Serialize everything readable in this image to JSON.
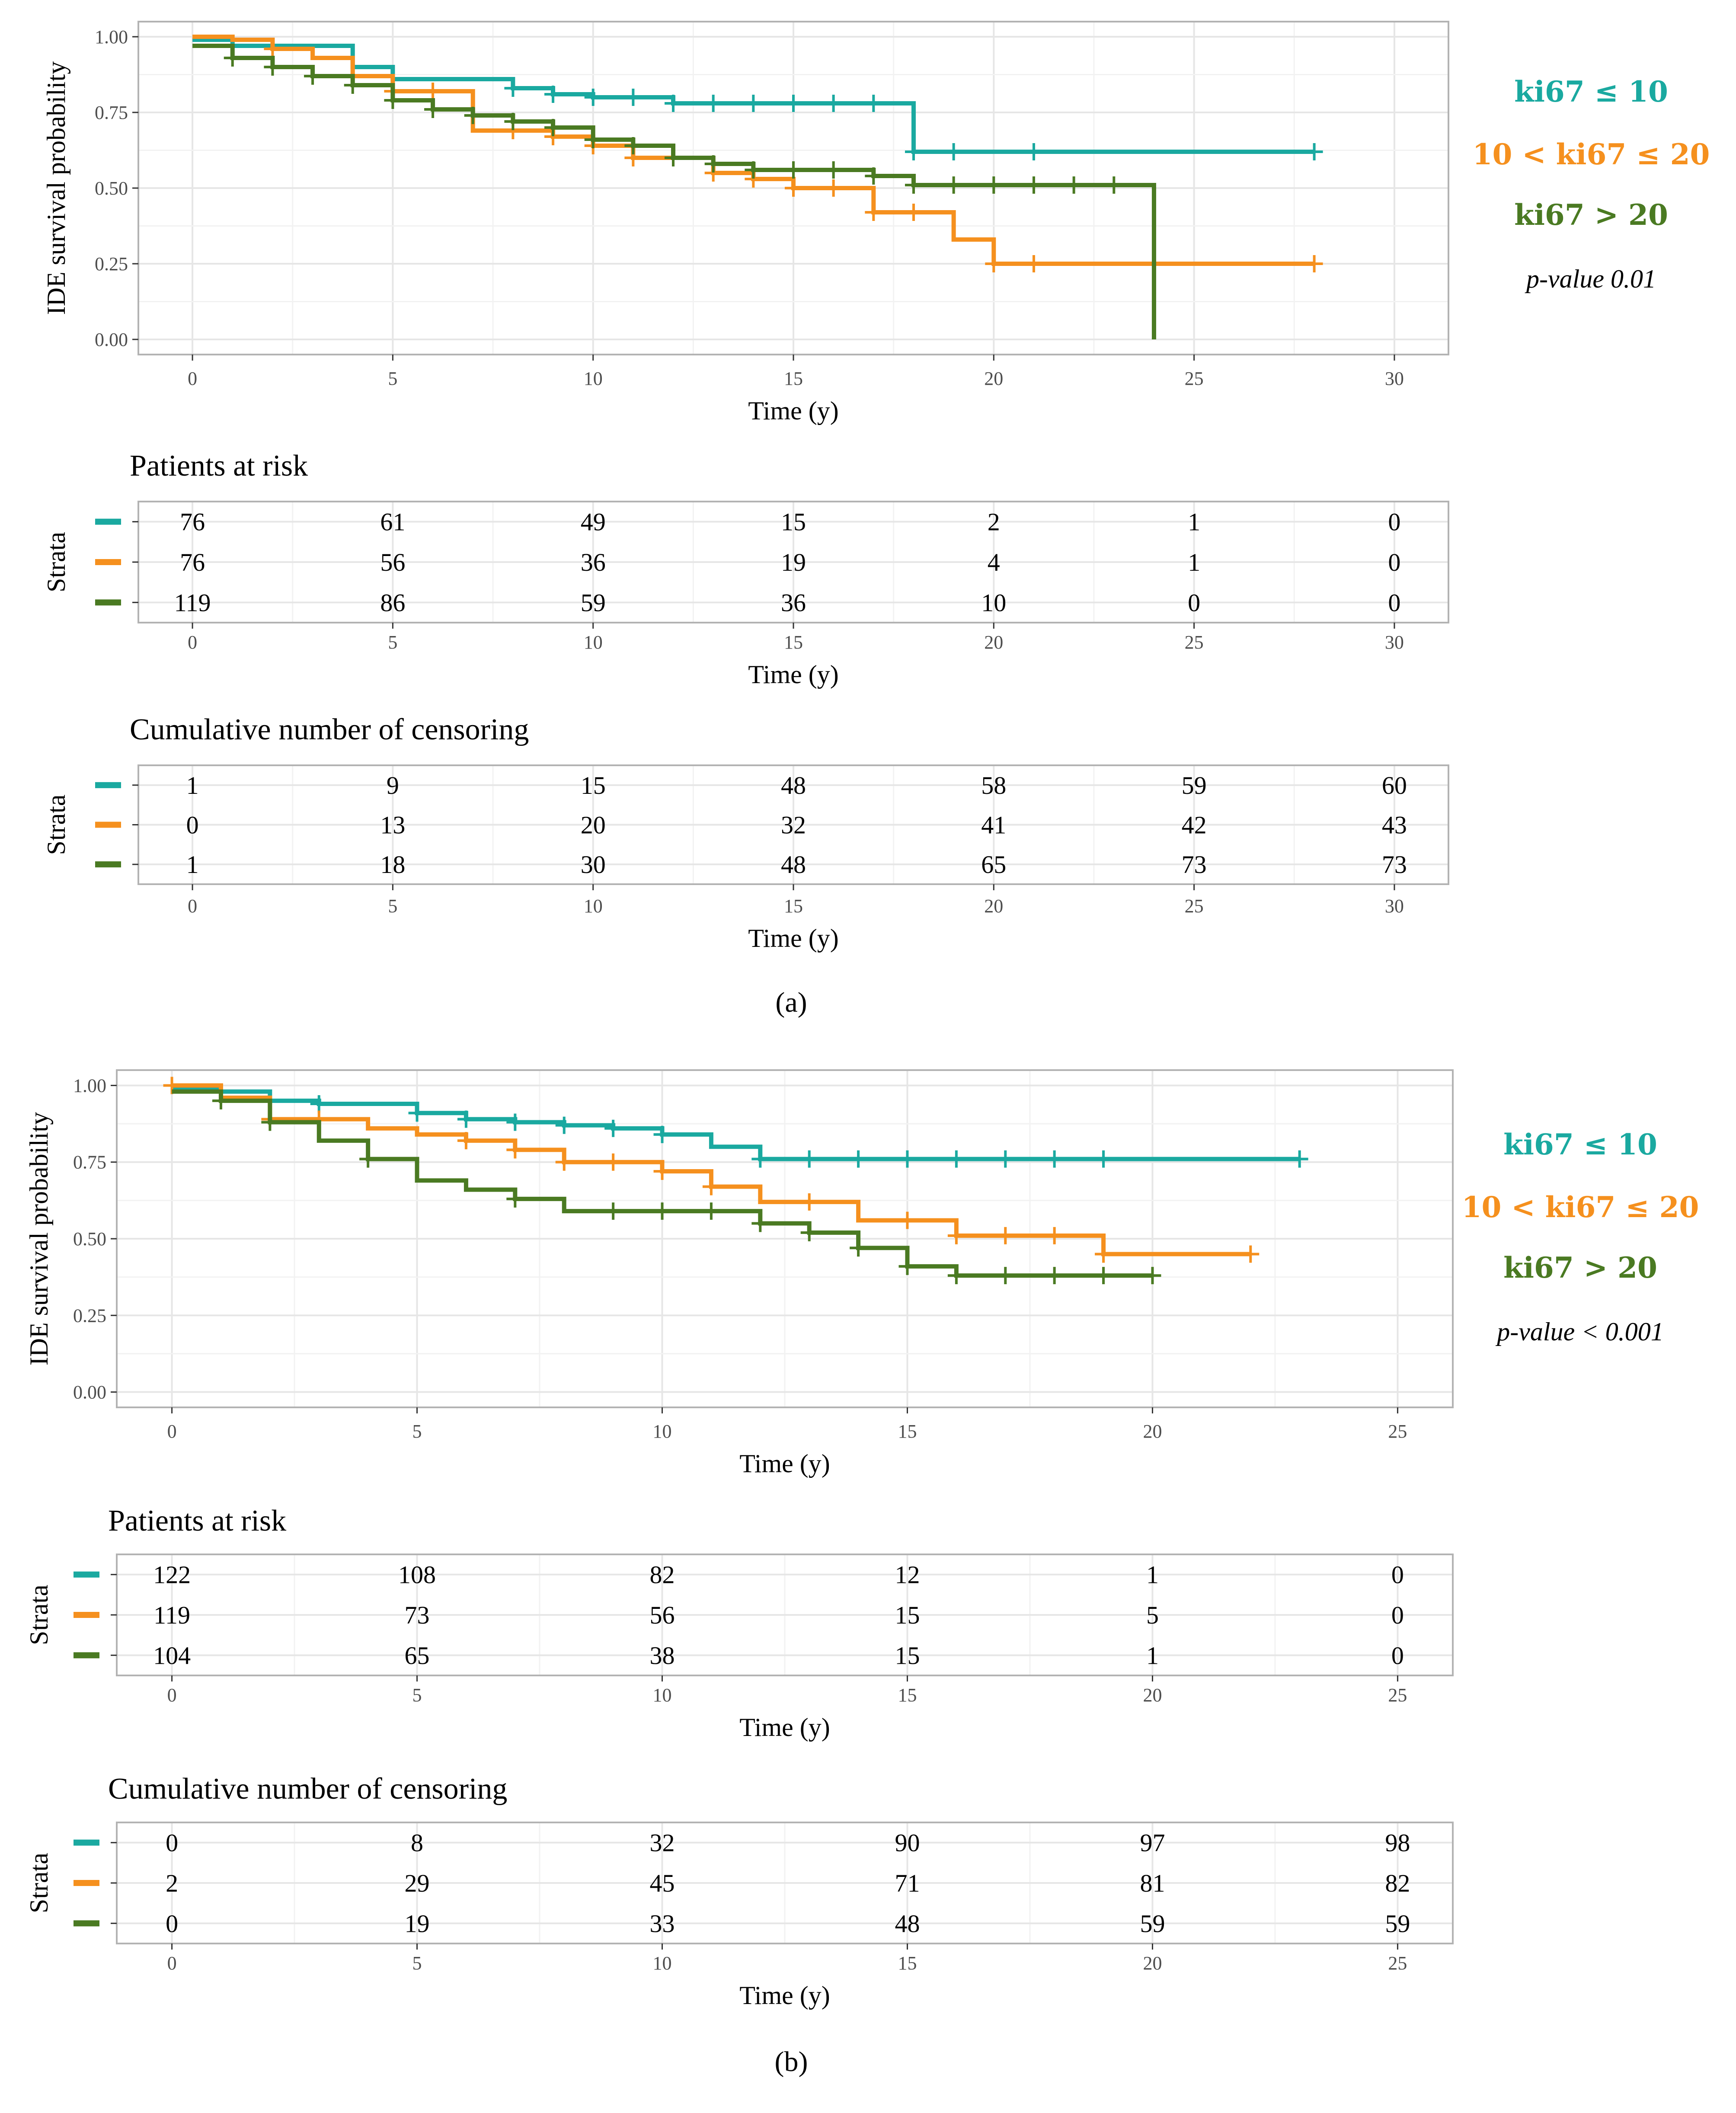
{
  "colors": {
    "teal": "#1aa9a0",
    "orange": "#f5901e",
    "green": "#4a7a22",
    "panel_border": "#b3b3b3",
    "grid_major": "#e6e6e6",
    "grid_minor": "#f2f2f2"
  },
  "chart_data": [
    {
      "type": "line",
      "subtype": "kaplan-meier step",
      "panel": "(a)",
      "caption": "(a)",
      "xlabel": "Time (y)",
      "ylabel": "IDE survival probability",
      "xlim": [
        0,
        30
      ],
      "ylim": [
        0,
        1
      ],
      "xticks": [
        "0",
        "5",
        "10",
        "15",
        "20",
        "25",
        "30"
      ],
      "yticks": [
        "0.00",
        "0.25",
        "0.50",
        "0.75",
        "1.00"
      ],
      "grid": true,
      "legend_position": "right",
      "p_value": "p-value 0.01",
      "series": [
        {
          "name": "ki67 ≤ 10",
          "color": "teal",
          "steps": [
            [
              0,
              0.99
            ],
            [
              1,
              0.97
            ],
            [
              4,
              0.9
            ],
            [
              5,
              0.86
            ],
            [
              8,
              0.83
            ],
            [
              9,
              0.81
            ],
            [
              10,
              0.8
            ],
            [
              12,
              0.78
            ],
            [
              18,
              0.62
            ],
            [
              28,
              0.62
            ]
          ],
          "censor_times": [
            8,
            9,
            10,
            11,
            12,
            13,
            14,
            15,
            16,
            17,
            18,
            19,
            21,
            28
          ]
        },
        {
          "name": "10 < ki67 ≤ 20",
          "color": "orange",
          "steps": [
            [
              0,
              1.0
            ],
            [
              1,
              0.99
            ],
            [
              2,
              0.96
            ],
            [
              3,
              0.93
            ],
            [
              4,
              0.87
            ],
            [
              5,
              0.82
            ],
            [
              7,
              0.69
            ],
            [
              9,
              0.67
            ],
            [
              10,
              0.64
            ],
            [
              11,
              0.6
            ],
            [
              13,
              0.55
            ],
            [
              14,
              0.53
            ],
            [
              15,
              0.5
            ],
            [
              17,
              0.42
            ],
            [
              19,
              0.33
            ],
            [
              20,
              0.25
            ],
            [
              28,
              0.25
            ]
          ],
          "censor_times": [
            2,
            5,
            6,
            8,
            9,
            10,
            11,
            12,
            13,
            14,
            15,
            16,
            17,
            18,
            20,
            21,
            28
          ]
        },
        {
          "name": "ki67 > 20",
          "color": "green",
          "steps": [
            [
              0,
              0.97
            ],
            [
              1,
              0.93
            ],
            [
              2,
              0.9
            ],
            [
              3,
              0.87
            ],
            [
              4,
              0.84
            ],
            [
              5,
              0.79
            ],
            [
              6,
              0.76
            ],
            [
              7,
              0.74
            ],
            [
              8,
              0.72
            ],
            [
              9,
              0.7
            ],
            [
              10,
              0.66
            ],
            [
              11,
              0.64
            ],
            [
              12,
              0.6
            ],
            [
              13,
              0.58
            ],
            [
              14,
              0.56
            ],
            [
              17,
              0.54
            ],
            [
              18,
              0.51
            ],
            [
              24,
              0.0
            ]
          ],
          "censor_times": [
            1,
            2,
            3,
            4,
            5,
            6,
            7,
            8,
            9,
            10,
            11,
            12,
            13,
            14,
            15,
            16,
            17,
            18,
            19,
            20,
            21,
            22,
            23
          ]
        }
      ],
      "risk_table": {
        "title": "Patients at risk",
        "ylabel": "Strata",
        "xlabel": "Time (y)",
        "times": [
          0,
          5,
          10,
          15,
          20,
          25,
          30
        ],
        "rows": [
          [
            "76",
            "61",
            "49",
            "15",
            "2",
            "1",
            "0"
          ],
          [
            "76",
            "56",
            "36",
            "19",
            "4",
            "1",
            "0"
          ],
          [
            "119",
            "86",
            "59",
            "36",
            "10",
            "0",
            "0"
          ]
        ]
      },
      "censor_table": {
        "title": "Cumulative number of censoring",
        "ylabel": "Strata",
        "xlabel": "Time (y)",
        "times": [
          0,
          5,
          10,
          15,
          20,
          25,
          30
        ],
        "rows": [
          [
            "1",
            "9",
            "15",
            "48",
            "58",
            "59",
            "60"
          ],
          [
            "0",
            "13",
            "20",
            "32",
            "41",
            "42",
            "43"
          ],
          [
            "1",
            "18",
            "30",
            "48",
            "65",
            "73",
            "73"
          ]
        ]
      }
    },
    {
      "type": "line",
      "subtype": "kaplan-meier step",
      "panel": "(b)",
      "caption": "(b)",
      "xlabel": "Time (y)",
      "ylabel": "IDE survival probability",
      "xlim": [
        0,
        25
      ],
      "ylim": [
        0,
        1
      ],
      "xticks": [
        "0",
        "5",
        "10",
        "15",
        "20",
        "25"
      ],
      "yticks": [
        "0.00",
        "0.25",
        "0.50",
        "0.75",
        "1.00"
      ],
      "grid": true,
      "legend_position": "right",
      "p_value": "p-value < 0.001",
      "series": [
        {
          "name": "ki67 ≤ 10",
          "color": "teal",
          "steps": [
            [
              0,
              0.99
            ],
            [
              1,
              0.98
            ],
            [
              2,
              0.95
            ],
            [
              3,
              0.94
            ],
            [
              5,
              0.91
            ],
            [
              6,
              0.89
            ],
            [
              7,
              0.88
            ],
            [
              8,
              0.87
            ],
            [
              9,
              0.86
            ],
            [
              10,
              0.84
            ],
            [
              11,
              0.8
            ],
            [
              12,
              0.76
            ],
            [
              23,
              0.76
            ]
          ],
          "censor_times": [
            3,
            5,
            6,
            7,
            8,
            9,
            10,
            12,
            13,
            14,
            15,
            16,
            17,
            18,
            19,
            23
          ]
        },
        {
          "name": "10 < ki67 ≤ 20",
          "color": "orange",
          "steps": [
            [
              0,
              1.0
            ],
            [
              1,
              0.96
            ],
            [
              2,
              0.89
            ],
            [
              4,
              0.86
            ],
            [
              5,
              0.84
            ],
            [
              6,
              0.82
            ],
            [
              7,
              0.79
            ],
            [
              8,
              0.75
            ],
            [
              10,
              0.72
            ],
            [
              11,
              0.67
            ],
            [
              12,
              0.62
            ],
            [
              14,
              0.56
            ],
            [
              16,
              0.51
            ],
            [
              19,
              0.45
            ],
            [
              22,
              0.45
            ]
          ],
          "censor_times": [
            0,
            2,
            3,
            6,
            7,
            8,
            9,
            10,
            11,
            13,
            15,
            16,
            17,
            18,
            19,
            22
          ]
        },
        {
          "name": "ki67 > 20",
          "color": "green",
          "steps": [
            [
              0,
              0.98
            ],
            [
              1,
              0.95
            ],
            [
              2,
              0.88
            ],
            [
              3,
              0.82
            ],
            [
              4,
              0.76
            ],
            [
              5,
              0.69
            ],
            [
              6,
              0.66
            ],
            [
              7,
              0.63
            ],
            [
              8,
              0.59
            ],
            [
              12,
              0.55
            ],
            [
              13,
              0.52
            ],
            [
              14,
              0.47
            ],
            [
              15,
              0.41
            ],
            [
              16,
              0.38
            ],
            [
              20,
              0.38
            ]
          ],
          "censor_times": [
            1,
            2,
            4,
            7,
            9,
            10,
            11,
            12,
            13,
            14,
            15,
            16,
            17,
            18,
            19,
            20
          ]
        }
      ],
      "risk_table": {
        "title": "Patients at risk",
        "ylabel": "Strata",
        "xlabel": "Time (y)",
        "times": [
          0,
          5,
          10,
          15,
          20,
          25
        ],
        "rows": [
          [
            "122",
            "108",
            "82",
            "12",
            "1",
            "0"
          ],
          [
            "119",
            "73",
            "56",
            "15",
            "5",
            "0"
          ],
          [
            "104",
            "65",
            "38",
            "15",
            "1",
            "0"
          ]
        ]
      },
      "censor_table": {
        "title": "Cumulative number of censoring",
        "ylabel": "Strata",
        "xlabel": "Time (y)",
        "times": [
          0,
          5,
          10,
          15,
          20,
          25
        ],
        "rows": [
          [
            "0",
            "8",
            "32",
            "90",
            "97",
            "98"
          ],
          [
            "2",
            "29",
            "45",
            "71",
            "81",
            "82"
          ],
          [
            "0",
            "19",
            "33",
            "48",
            "59",
            "59"
          ]
        ]
      }
    }
  ]
}
